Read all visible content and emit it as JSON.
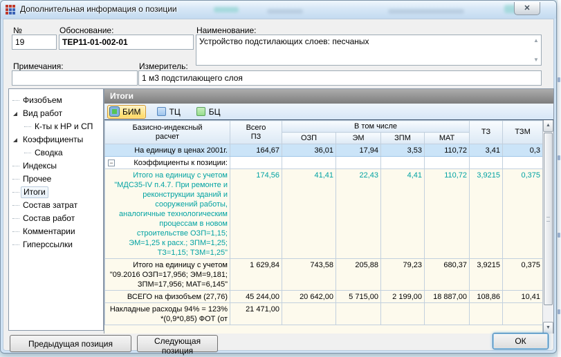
{
  "window": {
    "title": "Дополнительная информация о позиции",
    "close_glyph": "✕"
  },
  "form": {
    "num_label": "№",
    "num_value": "19",
    "basis_label": "Обоснование:",
    "basis_value": "ТЕР11-01-002-01",
    "name_label": "Наименование:",
    "name_value": "Устройство подстилающих слоев: песчаных",
    "notes_label": "Примечания:",
    "notes_value": "",
    "unit_label": "Измеритель:",
    "unit_value": "1 м3 подстилающего слоя"
  },
  "tree": {
    "items": [
      {
        "label": "Физобъем",
        "level": 0,
        "expandable": false,
        "selected": false
      },
      {
        "label": "Вид работ",
        "level": 0,
        "expandable": true,
        "selected": false
      },
      {
        "label": "К-ты к НР и СП",
        "level": 1,
        "expandable": false,
        "selected": false
      },
      {
        "label": "Коэффициенты",
        "level": 0,
        "expandable": true,
        "selected": false
      },
      {
        "label": "Сводка",
        "level": 1,
        "expandable": false,
        "selected": false
      },
      {
        "label": "Индексы",
        "level": 0,
        "expandable": false,
        "selected": false
      },
      {
        "label": "Прочее",
        "level": 0,
        "expandable": false,
        "selected": false
      },
      {
        "label": "Итоги",
        "level": 0,
        "expandable": false,
        "selected": true
      },
      {
        "label": "Состав затрат",
        "level": 0,
        "expandable": false,
        "selected": false
      },
      {
        "label": "Состав работ",
        "level": 0,
        "expandable": false,
        "selected": false
      },
      {
        "label": "Комментарии",
        "level": 0,
        "expandable": false,
        "selected": false
      },
      {
        "label": "Гиперссылки",
        "level": 0,
        "expandable": false,
        "selected": false
      }
    ]
  },
  "panel": {
    "title": "Итоги",
    "tabs": [
      {
        "label": "БИМ",
        "icon": "bim-swatch-icon",
        "active": true
      },
      {
        "label": "ТЦ",
        "icon": "tc-swatch-icon",
        "active": false
      },
      {
        "label": "БЦ",
        "icon": "bc-swatch-icon",
        "active": false
      }
    ]
  },
  "table": {
    "header": {
      "col1": "Базисно-индексный\nрасчет",
      "col2": "Всего\nПЗ",
      "group": "В том числе",
      "sub": [
        "ОЗП",
        "ЭМ",
        "ЗПМ",
        "МАТ"
      ],
      "col7": "ТЗ",
      "col8": "ТЗМ"
    },
    "rows": [
      {
        "label": "На единицу в ценах 2001г.",
        "values": [
          "164,67",
          "36,01",
          "17,94",
          "3,53",
          "110,72",
          "3,41",
          "0,3"
        ],
        "style": "selected"
      },
      {
        "label": "Коэффициенты к позиции:",
        "values": [
          "",
          "",
          "",
          "",
          "",
          "",
          ""
        ],
        "style": "group",
        "collapse_glyph": "−"
      },
      {
        "label": "Итого на единицу с учетом \"МДС35-IV п.4.7. При ремонте и реконструкции зданий и сооружений работы, аналогичные технологическим процессам в новом строительстве ОЗП=1,15; ЭМ=1,25 к расх.; ЗПМ=1,25; ТЗ=1,15; ТЗМ=1,25\"",
        "values": [
          "174,56",
          "41,41",
          "22,43",
          "4,41",
          "110,72",
          "3,9215",
          "0,375"
        ],
        "style": "teal"
      },
      {
        "label": "Итого на единицу с учетом \"09.2016 ОЗП=17,956; ЭМ=9,181; ЗПМ=17,956; МАТ=6,145\"",
        "values": [
          "1 629,84",
          "743,58",
          "205,88",
          "79,23",
          "680,37",
          "3,9215",
          "0,375"
        ],
        "style": ""
      },
      {
        "label": "ВСЕГО на физобъем (27,76)",
        "values": [
          "45 244,00",
          "20 642,00",
          "5 715,00",
          "2 199,00",
          "18 887,00",
          "108,86",
          "10,41"
        ],
        "style": ""
      },
      {
        "label": "Накладные расходы 94% = 123% *(0,9*0,85) ФОТ (от",
        "values": [
          "21 471,00",
          "",
          "",
          "",
          "",
          "",
          ""
        ],
        "style": ""
      }
    ]
  },
  "footer": {
    "prev_button": "Предыдущая позиция",
    "next_button": "Следующая позиция",
    "ok_button": "ОК"
  },
  "colors": {
    "teal_text": "#00a2a2",
    "selected_row_bg": "#cbe4f8",
    "cream_row_bg": "#fdfaed",
    "active_tab_bg": "#ffd95e",
    "active_tab_border": "#d1962c",
    "panel_header_bg": "#8d8d8d",
    "titlebar_bg": "#d6e7f6"
  }
}
